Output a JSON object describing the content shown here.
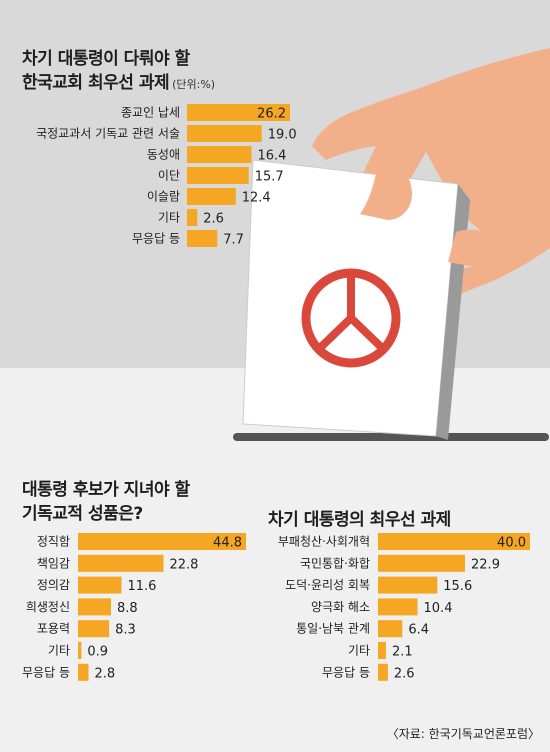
{
  "colors": {
    "bar": "#f5a623",
    "top_background": "#d9d9d9",
    "bottom_background": "#f0f0f0",
    "ballot_paper": "#ffffff",
    "ballot_stamp": "#d9483b",
    "hand": "#f2b08a",
    "ballot_box_slot": "#555555"
  },
  "illustration": {
    "description_icons": [
      "hand-icon",
      "ballot-paper-icon",
      "vote-stamp-icon",
      "ballot-box-slot-icon"
    ]
  },
  "source": "〈자료: 한국기독교언론포럼〉",
  "chart_data": [
    {
      "type": "bar",
      "title_line1": "차기 대통령이 다뤄야 할",
      "title_line2": "한국교회 최우선 과제",
      "unit": "(단위:%)",
      "categories": [
        "종교인 납세",
        "국정교과서 기독교 관련 서술",
        "동성애",
        "이단",
        "이슬람",
        "기타",
        "무응답 등"
      ],
      "values": [
        26.2,
        19.0,
        16.4,
        15.7,
        12.4,
        2.6,
        7.7
      ],
      "value_labels": [
        "26.2",
        "19.0",
        "16.4",
        "15.7",
        "12.4",
        "2.6",
        "7.7"
      ],
      "xlim": [
        0,
        26.2
      ],
      "grid": false,
      "legend": "none"
    },
    {
      "type": "bar",
      "title_line1": "대통령 후보가 지녀야 할",
      "title_line2": "기독교적 성품은?",
      "categories": [
        "정직함",
        "책임감",
        "정의감",
        "희생정신",
        "포용력",
        "기타",
        "무응답 등"
      ],
      "values": [
        44.8,
        22.8,
        11.6,
        8.8,
        8.3,
        0.9,
        2.8
      ],
      "value_labels": [
        "44.8",
        "22.8",
        "11.6",
        "8.8",
        "8.3",
        "0.9",
        "2.8"
      ],
      "xlim": [
        0,
        44.8
      ],
      "grid": false,
      "legend": "none"
    },
    {
      "type": "bar",
      "title_line1": "차기 대통령의 최우선 과제",
      "categories": [
        "부패청산·사회개혁",
        "국민통합·화합",
        "도덕·윤리성 회복",
        "양극화 해소",
        "통일·남북 관계",
        "기타",
        "무응답 등"
      ],
      "values": [
        40.0,
        22.9,
        15.6,
        10.4,
        6.4,
        2.1,
        2.6
      ],
      "value_labels": [
        "40.0",
        "22.9",
        "15.6",
        "10.4",
        "6.4",
        "2.1",
        "2.6"
      ],
      "xlim": [
        0,
        40.0
      ],
      "grid": false,
      "legend": "none"
    }
  ]
}
